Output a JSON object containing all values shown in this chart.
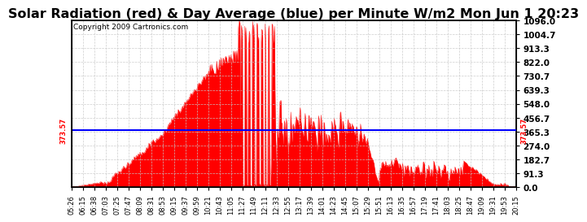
{
  "title": "Solar Radiation (red) & Day Average (blue) per Minute W/m2 Mon Jun 1 20:23",
  "copyright": "Copyright 2009 Cartronics.com",
  "ymin": 0.0,
  "ymax": 1096.0,
  "yticks": [
    0.0,
    91.3,
    182.7,
    274.0,
    365.3,
    456.7,
    548.0,
    639.3,
    730.7,
    822.0,
    913.3,
    1004.7,
    1096.0
  ],
  "avg_line": 373.57,
  "avg_label": "373.57",
  "fill_color": "#FF0000",
  "line_color": "#FF0000",
  "avg_color": "#0000FF",
  "background_color": "#FFFFFF",
  "grid_color": "#C8C8C8",
  "title_fontsize": 11.5,
  "copyright_fontsize": 6.5,
  "xlabel_fontsize": 6,
  "ylabel_fontsize": 7.5,
  "xtick_labels": [
    "05:26",
    "06:15",
    "06:38",
    "07:03",
    "07:25",
    "07:47",
    "08:09",
    "08:31",
    "08:53",
    "09:15",
    "09:37",
    "09:59",
    "10:21",
    "10:43",
    "11:05",
    "11:27",
    "11:49",
    "12:11",
    "12:33",
    "12:55",
    "13:17",
    "13:39",
    "14:01",
    "14:23",
    "14:45",
    "15:07",
    "15:29",
    "15:51",
    "16:13",
    "16:35",
    "16:57",
    "17:19",
    "17:41",
    "18:03",
    "18:25",
    "18:47",
    "19:09",
    "19:31",
    "19:53",
    "20:15"
  ]
}
